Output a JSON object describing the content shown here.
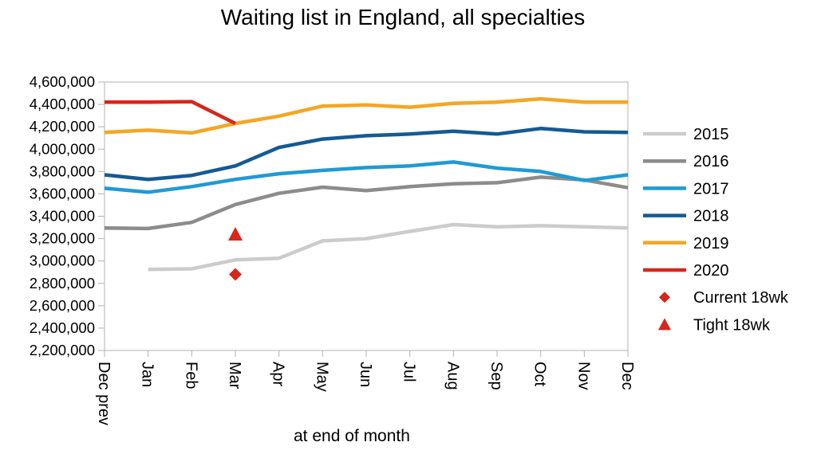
{
  "chart_data": {
    "type": "line",
    "title": "Waiting list in England, all specialties",
    "xlabel": "at end of month",
    "ylabel": "",
    "categories": [
      "Dec prev",
      "Jan",
      "Feb",
      "Mar",
      "Apr",
      "May",
      "Jun",
      "Jul",
      "Aug",
      "Sep",
      "Oct",
      "Nov",
      "Dec"
    ],
    "ylim": [
      2200000,
      4600000
    ],
    "ytick_step": 200000,
    "grid": false,
    "legend_position": "right",
    "series": [
      {
        "name": "2015",
        "color": "#cccccc",
        "values": [
          null,
          2925000,
          2930000,
          3010000,
          3025000,
          3180000,
          3200000,
          3265000,
          3325000,
          3305000,
          3315000,
          3305000,
          3295000
        ]
      },
      {
        "name": "2016",
        "color": "#8c8c8c",
        "values": [
          3295000,
          3290000,
          3345000,
          3505000,
          3605000,
          3660000,
          3630000,
          3665000,
          3690000,
          3700000,
          3750000,
          3725000,
          3655000
        ]
      },
      {
        "name": "2017",
        "color": "#1f9ad6",
        "values": [
          3650000,
          3615000,
          3665000,
          3730000,
          3780000,
          3810000,
          3835000,
          3850000,
          3885000,
          3830000,
          3800000,
          3720000,
          3770000
        ]
      },
      {
        "name": "2018",
        "color": "#155a94",
        "values": [
          3770000,
          3730000,
          3765000,
          3850000,
          4015000,
          4090000,
          4120000,
          4135000,
          4160000,
          4135000,
          4185000,
          4155000,
          4150000
        ]
      },
      {
        "name": "2019",
        "color": "#f5a623",
        "values": [
          4150000,
          4170000,
          4145000,
          4230000,
          4295000,
          4385000,
          4395000,
          4375000,
          4410000,
          4420000,
          4450000,
          4420000,
          4420000
        ]
      },
      {
        "name": "2020",
        "color": "#d7261c",
        "values": [
          4420000,
          4420000,
          4425000,
          4230000,
          null,
          null,
          null,
          null,
          null,
          null,
          null,
          null,
          null
        ]
      }
    ],
    "markers": [
      {
        "name": "Current 18wk",
        "shape": "diamond",
        "color": "#d7261c",
        "category": "Mar",
        "value": 2880000
      },
      {
        "name": "Tight 18wk",
        "shape": "triangle",
        "color": "#d7261c",
        "category": "Mar",
        "value": 3240000
      }
    ]
  }
}
